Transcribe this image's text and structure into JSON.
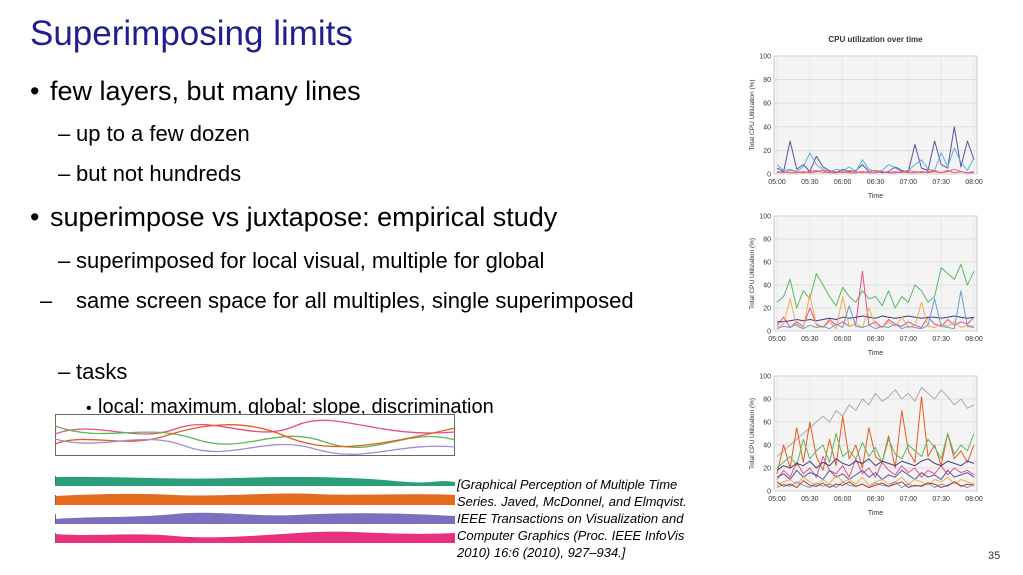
{
  "slide": {
    "title": "Superimposing limits",
    "page_number": "35",
    "bullet_glyph": "•",
    "dash_glyph": "–",
    "bullets": [
      "few layers, but many lines",
      "up to a few dozen",
      "but not hundreds",
      "superimpose vs juxtapose: empirical study",
      "superimposed for local visual, multiple for global",
      "same screen space for all multiples, single superimposed",
      "tasks",
      "local: maximum, global: slope, discrimination"
    ],
    "citation": "[Graphical Perception of Multiple Time Series. Javed, McDonnel, and Elmqvist. IEEE Transactions on Visualization and Computer Graphics (Proc. IEEE InfoVis 2010) 16:6 (2010), 927–934.]"
  },
  "chart_data": [
    {
      "type": "line",
      "title": "CPU utilization over time",
      "xlabel": "Time",
      "ylabel": "Total CPU Utilization (%)",
      "x_ticks": [
        "05:00",
        "05:30",
        "06:00",
        "06:30",
        "07:00",
        "07:30",
        "08:00"
      ],
      "y_ticks": [
        0,
        20,
        40,
        60,
        80,
        100
      ],
      "ylim": [
        0,
        100
      ],
      "grid": true,
      "series": [
        {
          "color": "#5a4fa3",
          "values": [
            5,
            2,
            28,
            4,
            8,
            2,
            15,
            6,
            3,
            1,
            4,
            2,
            3,
            8,
            2,
            3,
            1,
            2,
            6,
            3,
            2,
            25,
            5,
            3,
            28,
            8,
            5,
            40,
            6,
            28,
            12
          ]
        },
        {
          "color": "#5ab0de",
          "values": [
            8,
            3,
            4,
            2,
            6,
            18,
            8,
            4,
            2,
            4,
            3,
            6,
            2,
            12,
            4,
            2,
            3,
            8,
            5,
            2,
            3,
            8,
            12,
            4,
            3,
            18,
            6,
            22,
            10,
            3,
            14
          ]
        },
        {
          "color": "#e0734a",
          "values": [
            2,
            1,
            3,
            2,
            1,
            2,
            3,
            1,
            2,
            2,
            1,
            3,
            2,
            1,
            2,
            3,
            2,
            1,
            2,
            1,
            3,
            2,
            1,
            2,
            3,
            1,
            2,
            4,
            2,
            1,
            2
          ]
        },
        {
          "color": "#e84d8a",
          "values": [
            1,
            2,
            1,
            1,
            2,
            1,
            2,
            3,
            1,
            1,
            2,
            1,
            1,
            2,
            1,
            1,
            2,
            1,
            1,
            2,
            1,
            1,
            2,
            1,
            2,
            1,
            3,
            1,
            2,
            1,
            1
          ]
        }
      ]
    },
    {
      "type": "line",
      "title": "",
      "xlabel": "Time",
      "ylabel": "Total CPU Utilization (%)",
      "x_ticks": [
        "05:00",
        "05:30",
        "06:00",
        "06:30",
        "07:00",
        "07:30",
        "08:00"
      ],
      "y_ticks": [
        0,
        20,
        40,
        60,
        80,
        100
      ],
      "ylim": [
        0,
        100
      ],
      "grid": true,
      "series": [
        {
          "color": "#5cb85c",
          "values": [
            25,
            30,
            45,
            20,
            35,
            28,
            50,
            40,
            30,
            22,
            38,
            30,
            25,
            35,
            28,
            30,
            22,
            35,
            20,
            30,
            25,
            40,
            35,
            25,
            30,
            55,
            50,
            45,
            58,
            40,
            52
          ]
        },
        {
          "color": "#e84d8a",
          "values": [
            5,
            12,
            3,
            8,
            4,
            20,
            6,
            3,
            10,
            5,
            8,
            4,
            6,
            52,
            5,
            8,
            3,
            10,
            6,
            4,
            8,
            5,
            3,
            12,
            6,
            4,
            10,
            5,
            8,
            6,
            12
          ]
        },
        {
          "color": "#3d3d7a",
          "values": [
            8,
            8,
            9,
            10,
            9,
            10,
            9,
            10,
            11,
            10,
            12,
            11,
            12,
            13,
            12,
            11,
            13,
            12,
            11,
            12,
            13,
            12,
            11,
            12,
            12,
            11,
            12,
            13,
            12,
            11,
            12
          ]
        },
        {
          "color": "#f0ad4e",
          "values": [
            3,
            6,
            28,
            4,
            2,
            32,
            5,
            3,
            8,
            2,
            30,
            4,
            6,
            3,
            20,
            5,
            3,
            8,
            4,
            12,
            3,
            5,
            25,
            4,
            3,
            6,
            4,
            8,
            3,
            5,
            4
          ]
        },
        {
          "color": "#6a9fd4",
          "values": [
            2,
            4,
            3,
            6,
            2,
            5,
            3,
            4,
            2,
            6,
            3,
            22,
            4,
            3,
            5,
            2,
            4,
            3,
            6,
            2,
            4,
            3,
            2,
            5,
            28,
            4,
            3,
            2,
            35,
            4,
            3
          ]
        }
      ]
    },
    {
      "type": "line",
      "title": "",
      "xlabel": "Time",
      "ylabel": "Total CPU Utilization (%)",
      "x_ticks": [
        "05:00",
        "05:30",
        "06:00",
        "06:30",
        "07:00",
        "07:30",
        "08:00"
      ],
      "y_ticks": [
        0,
        20,
        40,
        60,
        80,
        100
      ],
      "ylim": [
        0,
        100
      ],
      "grid": true,
      "series": [
        {
          "color": "#aaaaaa",
          "values": [
            30,
            35,
            40,
            45,
            50,
            55,
            60,
            65,
            60,
            70,
            65,
            75,
            70,
            80,
            75,
            85,
            78,
            82,
            88,
            80,
            85,
            78,
            90,
            85,
            80,
            88,
            82,
            75,
            80,
            72,
            75
          ]
        },
        {
          "color": "#e85a1e",
          "values": [
            15,
            40,
            20,
            55,
            25,
            60,
            30,
            18,
            45,
            22,
            65,
            28,
            40,
            20,
            55,
            30,
            25,
            48,
            20,
            70,
            35,
            25,
            82,
            30,
            40,
            22,
            50,
            28,
            35,
            25,
            40
          ]
        },
        {
          "color": "#5cb85c",
          "values": [
            20,
            25,
            30,
            22,
            45,
            28,
            35,
            40,
            25,
            50,
            30,
            35,
            28,
            42,
            30,
            38,
            25,
            45,
            32,
            28,
            40,
            35,
            30,
            45,
            38,
            28,
            50,
            32,
            40,
            35,
            50
          ]
        },
        {
          "color": "#e84d8a",
          "values": [
            10,
            18,
            12,
            25,
            15,
            20,
            12,
            30,
            18,
            15,
            22,
            12,
            28,
            15,
            20,
            12,
            25,
            18,
            14,
            22,
            16,
            20,
            12,
            18,
            15,
            22,
            14,
            20,
            16,
            18,
            14
          ]
        },
        {
          "color": "#3d3d7a",
          "values": [
            18,
            22,
            20,
            24,
            22,
            26,
            20,
            25,
            22,
            28,
            24,
            22,
            26,
            24,
            28,
            22,
            26,
            24,
            22,
            26,
            24,
            22,
            26,
            28,
            24,
            22,
            26,
            24,
            22,
            26,
            24
          ]
        },
        {
          "color": "#5a4fa3",
          "values": [
            12,
            15,
            10,
            18,
            12,
            16,
            14,
            10,
            18,
            12,
            15,
            10,
            14,
            18,
            12,
            16,
            10,
            14,
            12,
            18,
            14,
            10,
            16,
            12,
            14,
            10,
            18,
            12,
            14,
            16,
            12
          ]
        },
        {
          "color": "#f0ad4e",
          "values": [
            5,
            8,
            10,
            6,
            12,
            8,
            5,
            10,
            6,
            14,
            8,
            10,
            6,
            12,
            5,
            8,
            10,
            6,
            8,
            12,
            6,
            10,
            8,
            5,
            10,
            8,
            12,
            6,
            10,
            8,
            6
          ]
        },
        {
          "color": "#6a9fd4",
          "values": [
            3,
            6,
            4,
            8,
            5,
            3,
            7,
            4,
            6,
            3,
            8,
            5,
            4,
            6,
            3,
            7,
            5,
            4,
            8,
            3,
            6,
            4,
            5,
            7,
            3,
            6,
            4,
            8,
            5,
            3,
            6
          ]
        },
        {
          "color": "#c0392b",
          "values": [
            8,
            4,
            6,
            3,
            9,
            5,
            4,
            7,
            3,
            6,
            5,
            8,
            4,
            6,
            3,
            5,
            7,
            4,
            6,
            8,
            3,
            5,
            4,
            7,
            6,
            3,
            5,
            8,
            4,
            6,
            5
          ]
        }
      ]
    }
  ]
}
